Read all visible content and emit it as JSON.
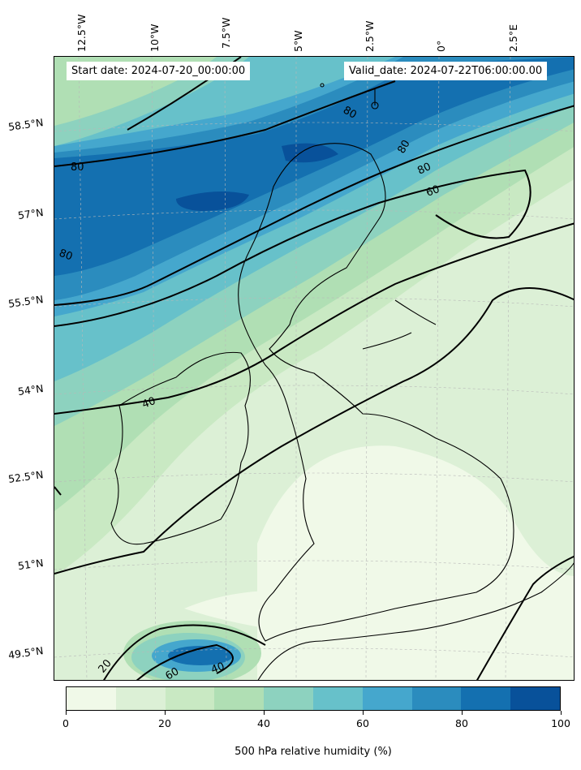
{
  "header": {
    "start_date": "Start date: 2024-07-20_00:00:00",
    "valid_date": "Valid_date: 2024-07-22T06:00:00.00"
  },
  "axes": {
    "longitude_labels": [
      "12.5°W",
      "10°W",
      "7.5°W",
      "5°W",
      "2.5°W",
      "0°",
      "2.5°E"
    ],
    "latitude_labels": [
      "58.5°N",
      "57°N",
      "55.5°N",
      "54°N",
      "52.5°N",
      "51°N",
      "49.5°N"
    ]
  },
  "contour_labels": [
    "80",
    "80",
    "80",
    "80",
    "80",
    "60",
    "40",
    "20",
    "60",
    "40"
  ],
  "colorbar": {
    "label": "500 hPa relative humidity (%)",
    "ticks": [
      "0",
      "20",
      "40",
      "60",
      "80",
      "100"
    ],
    "colors": [
      "#f0f9e8",
      "#dcf0d6",
      "#c9e9c3",
      "#b0dfb4",
      "#8dd2bf",
      "#67c1ca",
      "#45a7cd",
      "#2b8cbe",
      "#1470b0",
      "#08519a"
    ]
  }
}
